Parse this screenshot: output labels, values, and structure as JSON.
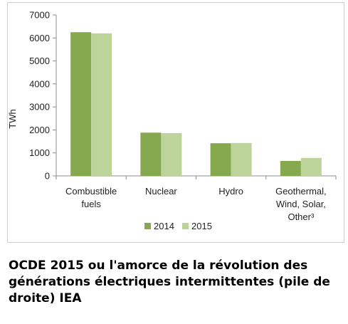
{
  "chart_data": {
    "type": "bar",
    "categories": [
      [
        "Combustible",
        "fuels"
      ],
      [
        "Nuclear"
      ],
      [
        "Hydro"
      ],
      [
        "Geothermal,",
        "Wind, Solar,",
        "Other³"
      ]
    ],
    "series": [
      {
        "name": "2014",
        "values": [
          6250,
          1880,
          1420,
          650
        ],
        "color": "#86a94f"
      },
      {
        "name": "2015",
        "values": [
          6200,
          1860,
          1430,
          780
        ],
        "color": "#bcd49a"
      }
    ],
    "ylabel": "TWh",
    "ylim": [
      0,
      7000
    ],
    "yticks": [
      0,
      1000,
      2000,
      3000,
      4000,
      5000,
      6000,
      7000
    ],
    "ytick_labels": [
      "0",
      "1000",
      "2000",
      "3000",
      "4000",
      "5000",
      "6000",
      "7000"
    ],
    "grid": false,
    "legend_position": "bottom"
  },
  "caption": "OCDE  2015 ou l'amorce de la révolution des générations électriques intermittentes (pile de droite) IEA"
}
